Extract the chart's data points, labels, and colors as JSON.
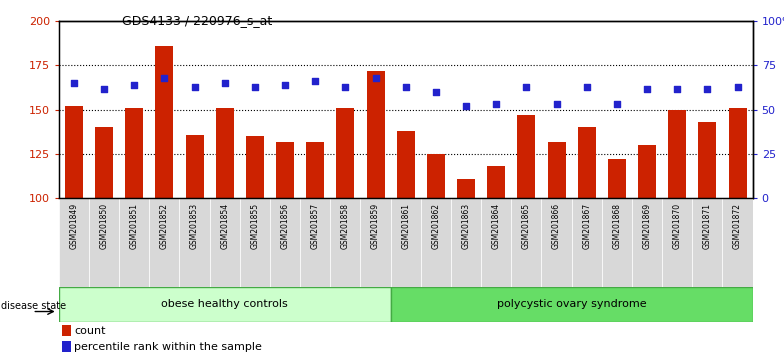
{
  "title": "GDS4133 / 220976_s_at",
  "samples": [
    "GSM201849",
    "GSM201850",
    "GSM201851",
    "GSM201852",
    "GSM201853",
    "GSM201854",
    "GSM201855",
    "GSM201856",
    "GSM201857",
    "GSM201858",
    "GSM201859",
    "GSM201861",
    "GSM201862",
    "GSM201863",
    "GSM201864",
    "GSM201865",
    "GSM201866",
    "GSM201867",
    "GSM201868",
    "GSM201869",
    "GSM201870",
    "GSM201871",
    "GSM201872"
  ],
  "bar_values": [
    152,
    140,
    151,
    186,
    136,
    151,
    135,
    132,
    132,
    151,
    172,
    138,
    125,
    111,
    118,
    147,
    132,
    140,
    122,
    130,
    150,
    143,
    151
  ],
  "dot_values": [
    65,
    62,
    64,
    68,
    63,
    65,
    63,
    64,
    66,
    63,
    68,
    63,
    60,
    52,
    53,
    63,
    53,
    63,
    53,
    62,
    62,
    62,
    63
  ],
  "bar_color": "#cc2200",
  "dot_color": "#2222cc",
  "ylim_left": [
    100,
    200
  ],
  "ylim_right": [
    0,
    100
  ],
  "yticks_left": [
    100,
    125,
    150,
    175,
    200
  ],
  "yticks_right": [
    0,
    25,
    50,
    75,
    100
  ],
  "ytick_labels_right": [
    "0",
    "25",
    "50",
    "75",
    "100%"
  ],
  "grid_values": [
    125,
    150,
    175
  ],
  "group1_label": "obese healthy controls",
  "group2_label": "polycystic ovary syndrome",
  "group1_count": 11,
  "total_count": 23,
  "disease_state_label": "disease state",
  "legend_bar_label": "count",
  "legend_dot_label": "percentile rank within the sample",
  "group1_color": "#ccffcc",
  "group2_color": "#66dd66",
  "ylabel_left_color": "#cc2200",
  "ylabel_right_color": "#2222cc",
  "tick_bg_color": "#d8d8d8"
}
